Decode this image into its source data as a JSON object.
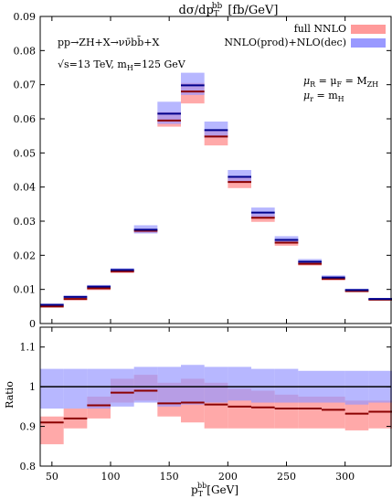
{
  "chart_data": [
    {
      "type": "bar",
      "title_main": "dσ/dp",
      "title_sub": "T",
      "title_sup": "bb",
      "title_unit": "[fb/GeV]",
      "legend": [
        {
          "label": "full NNLO",
          "color": "#ff9a9a",
          "line_color": "#8b0000"
        },
        {
          "label": "NNLO(prod)+NLO(dec)",
          "color": "#9999ff",
          "line_color": "#00008b"
        }
      ],
      "annotations": {
        "process": "pp→ZH+X→νν̄bb̄+X",
        "energy_main": "√s=13 TeV, m",
        "energy_sub": "H",
        "energy_tail": "=125 GeV",
        "mu1_a": "μ",
        "mu1_a_sub": "R",
        "mu1_b": " = μ",
        "mu1_b_sub": "F",
        "mu1_c": " = M",
        "mu1_c_sub": "ZH",
        "mu2_a": "μ",
        "mu2_a_sub": "r",
        "mu2_b": " = m",
        "mu2_b_sub": "H"
      },
      "xlim": [
        40,
        340
      ],
      "ylim": [
        0,
        0.09
      ],
      "yticks": [
        "0",
        "0.01",
        "0.02",
        "0.03",
        "0.04",
        "0.05",
        "0.06",
        "0.07",
        "0.08",
        "0.09"
      ],
      "bins": [
        [
          40,
          60
        ],
        [
          60,
          80
        ],
        [
          80,
          100
        ],
        [
          100,
          120
        ],
        [
          120,
          140
        ],
        [
          140,
          160
        ],
        [
          160,
          180
        ],
        [
          180,
          200
        ],
        [
          200,
          220
        ],
        [
          220,
          240
        ],
        [
          240,
          260
        ],
        [
          260,
          280
        ],
        [
          280,
          300
        ],
        [
          300,
          320
        ],
        [
          320,
          340
        ]
      ],
      "series": [
        {
          "name": "full NNLO",
          "values": [
            0.005,
            0.0072,
            0.0103,
            0.0153,
            0.0272,
            0.0595,
            0.068,
            0.0548,
            0.0415,
            0.031,
            0.0237,
            0.0175,
            0.0131,
            0.0095,
            0.007
          ],
          "lo": [
            0.0047,
            0.0068,
            0.0098,
            0.0148,
            0.0266,
            0.0577,
            0.0645,
            0.0522,
            0.0397,
            0.0298,
            0.0228,
            0.017,
            0.0127,
            0.0092,
            0.0068
          ],
          "hi": [
            0.0053,
            0.0076,
            0.0108,
            0.0158,
            0.0278,
            0.062,
            0.0705,
            0.0565,
            0.0428,
            0.032,
            0.0245,
            0.0181,
            0.0135,
            0.0098,
            0.0072
          ]
        },
        {
          "name": "NNLO(prod)+NLO(dec)",
          "values": [
            0.0055,
            0.0078,
            0.0108,
            0.0157,
            0.0275,
            0.0615,
            0.0698,
            0.0567,
            0.043,
            0.0325,
            0.0245,
            0.0181,
            0.0135,
            0.0098,
            0.0072
          ],
          "lo": [
            0.0051,
            0.0074,
            0.0102,
            0.0151,
            0.0264,
            0.0585,
            0.067,
            0.0545,
            0.0413,
            0.0311,
            0.0235,
            0.0174,
            0.0129,
            0.0094,
            0.0069
          ],
          "hi": [
            0.0058,
            0.0082,
            0.0113,
            0.0162,
            0.0288,
            0.065,
            0.0735,
            0.0592,
            0.045,
            0.034,
            0.0256,
            0.0189,
            0.0141,
            0.0102,
            0.0075
          ]
        }
      ]
    },
    {
      "type": "bar",
      "ylabel": "Ratio",
      "xlabel_main": "p",
      "xlabel_sub": "T",
      "xlabel_sup": "bb",
      "xlabel_unit": "[GeV]",
      "xlim": [
        40,
        340
      ],
      "ylim": [
        0.8,
        1.15
      ],
      "xticks": [
        "50",
        "100",
        "150",
        "200",
        "250",
        "300"
      ],
      "xtick_values": [
        50,
        100,
        150,
        200,
        250,
        300
      ],
      "yticks": [
        "0.8",
        "0.9",
        "1",
        "1.1"
      ],
      "ytick_values": [
        0.8,
        0.9,
        1.0,
        1.1
      ],
      "reference": 1.0,
      "series": [
        {
          "name": "full NNLO",
          "values": [
            0.91,
            0.92,
            0.953,
            0.985,
            0.99,
            0.958,
            0.96,
            0.955,
            0.95,
            0.948,
            0.945,
            0.945,
            0.942,
            0.932,
            0.937
          ],
          "lo": [
            0.855,
            0.895,
            0.92,
            0.96,
            0.965,
            0.925,
            0.91,
            0.895,
            0.895,
            0.895,
            0.895,
            0.895,
            0.895,
            0.89,
            0.895
          ],
          "hi": [
            0.925,
            0.945,
            0.975,
            1.02,
            1.03,
            1.01,
            1.02,
            1.01,
            0.995,
            0.99,
            0.98,
            0.975,
            0.975,
            0.965,
            0.965
          ]
        },
        {
          "name": "NNLO(prod)+NLO(dec)",
          "values": [
            1.0,
            1.0,
            1.0,
            1.0,
            1.0,
            1.0,
            1.0,
            1.0,
            1.0,
            1.0,
            1.0,
            1.0,
            1.0,
            1.0,
            1.0
          ],
          "lo": [
            0.945,
            0.945,
            0.945,
            0.95,
            0.96,
            0.95,
            0.955,
            0.96,
            0.965,
            0.96,
            0.96,
            0.96,
            0.96,
            0.955,
            0.96
          ],
          "hi": [
            1.045,
            1.045,
            1.045,
            1.045,
            1.05,
            1.05,
            1.055,
            1.05,
            1.05,
            1.045,
            1.045,
            1.04,
            1.04,
            1.04,
            1.04
          ]
        }
      ]
    }
  ]
}
